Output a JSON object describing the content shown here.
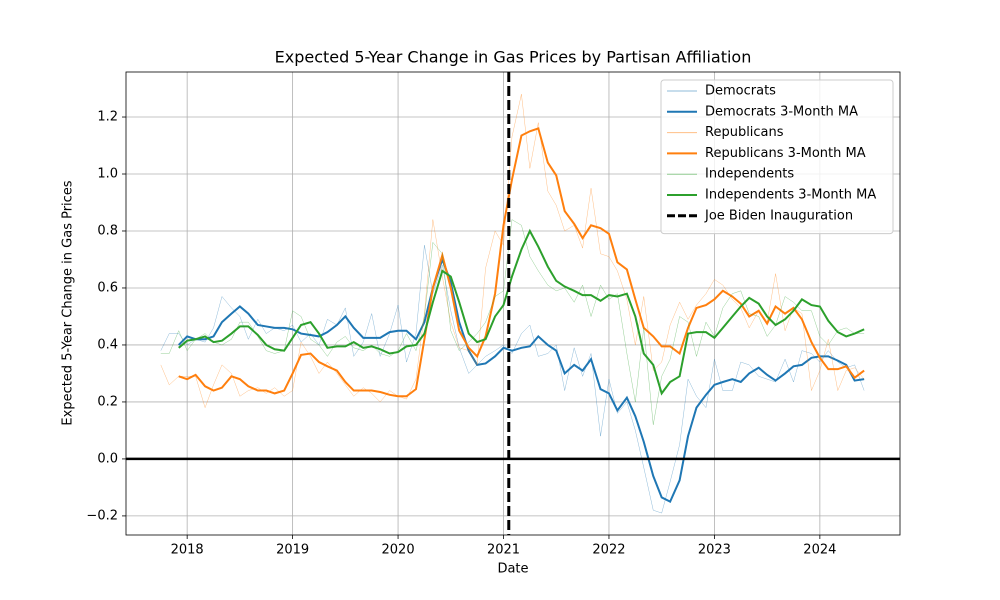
{
  "chart_data": {
    "type": "line",
    "title": "Expected 5-Year Change in Gas Prices by Partisan Affiliation",
    "xlabel": "Date",
    "ylabel": "Expected 5-Year Change in Gas Prices",
    "xlim": [
      2017.42,
      2024.76
    ],
    "ylim": [
      -0.267,
      1.358
    ],
    "xticks": [
      2018,
      2019,
      2020,
      2021,
      2022,
      2023,
      2024
    ],
    "yticks": [
      {
        "value": -0.2,
        "label": "−0.2"
      },
      {
        "value": 0,
        "label": "0.0"
      },
      0.2,
      0.4,
      0.6,
      0.8,
      {
        "value": 1,
        "label": "1.0"
      },
      1.2
    ],
    "grid": true,
    "legend": "upper right",
    "hline": 0,
    "vlines": [
      {
        "x": 2021.05,
        "label": "Joe Biden Inauguration",
        "color": "#000000",
        "linestyle": "dashed"
      }
    ],
    "x": [
      2017.75,
      2017.83,
      2017.92,
      2018.0,
      2018.08,
      2018.17,
      2018.25,
      2018.33,
      2018.42,
      2018.5,
      2018.58,
      2018.67,
      2018.75,
      2018.83,
      2018.92,
      2019.0,
      2019.08,
      2019.17,
      2019.25,
      2019.33,
      2019.42,
      2019.5,
      2019.58,
      2019.67,
      2019.75,
      2019.83,
      2019.92,
      2020.0,
      2020.08,
      2020.17,
      2020.25,
      2020.33,
      2020.42,
      2020.5,
      2020.58,
      2020.67,
      2020.75,
      2020.83,
      2020.92,
      2021.0,
      2021.08,
      2021.17,
      2021.25,
      2021.33,
      2021.42,
      2021.5,
      2021.58,
      2021.67,
      2021.75,
      2021.83,
      2021.92,
      2022.0,
      2022.08,
      2022.17,
      2022.25,
      2022.33,
      2022.42,
      2022.5,
      2022.58,
      2022.67,
      2022.75,
      2022.83,
      2022.92,
      2023.0,
      2023.08,
      2023.17,
      2023.25,
      2023.33,
      2023.42,
      2023.5,
      2023.58,
      2023.67,
      2023.75,
      2023.83,
      2023.92,
      2024.0,
      2024.08,
      2024.17,
      2024.25,
      2024.33,
      2024.42
    ],
    "series": [
      {
        "name": "Democrats",
        "color": "#1f77b4",
        "linewidth": 0.5,
        "alpha": 0.5,
        "values": [
          0.38,
          0.44,
          0.44,
          0.4,
          0.42,
          0.41,
          0.46,
          0.57,
          0.53,
          0.5,
          0.42,
          0.49,
          0.44,
          0.46,
          0.45,
          0.47,
          0.41,
          0.44,
          0.4,
          0.49,
          0.47,
          0.53,
          0.36,
          0.41,
          0.51,
          0.36,
          0.44,
          0.54,
          0.34,
          0.44,
          0.75,
          0.58,
          0.68,
          0.52,
          0.39,
          0.3,
          0.33,
          0.36,
          0.38,
          0.4,
          0.37,
          0.44,
          0.47,
          0.36,
          0.37,
          0.4,
          0.24,
          0.39,
          0.29,
          0.37,
          0.08,
          0.28,
          0.16,
          0.2,
          0.1,
          -0.03,
          -0.18,
          -0.19,
          -0.08,
          0.05,
          0.28,
          0.22,
          0.18,
          0.35,
          0.24,
          0.24,
          0.34,
          0.33,
          0.29,
          0.28,
          0.27,
          0.35,
          0.27,
          0.38,
          0.37,
          0.34,
          0.38,
          0.34,
          0.32,
          0.33,
          0.24
        ]
      },
      {
        "name": "Democrats 3-Month MA",
        "color": "#1f77b4",
        "linewidth": 2,
        "alpha": 1,
        "values": [
          null,
          null,
          0.4,
          0.43,
          0.42,
          0.42,
          0.43,
          0.48,
          0.51,
          0.535,
          0.51,
          0.47,
          0.465,
          0.46,
          0.46,
          0.455,
          0.44,
          0.435,
          0.43,
          0.445,
          0.47,
          0.5,
          0.46,
          0.425,
          0.425,
          0.425,
          0.445,
          0.45,
          0.45,
          0.42,
          0.48,
          0.6,
          0.7,
          0.62,
          0.48,
          0.38,
          0.33,
          0.335,
          0.36,
          0.39,
          0.38,
          0.39,
          0.395,
          0.43,
          0.4,
          0.38,
          0.3,
          0.33,
          0.31,
          0.35,
          0.245,
          0.23,
          0.17,
          0.215,
          0.15,
          0.06,
          -0.06,
          -0.135,
          -0.15,
          -0.075,
          0.08,
          0.18,
          0.225,
          0.26,
          0.27,
          0.28,
          0.27,
          0.3,
          0.32,
          0.295,
          0.275,
          0.3,
          0.325,
          0.33,
          0.355,
          0.36,
          0.36,
          0.345,
          0.33,
          0.275,
          0.28
        ]
      },
      {
        "name": "Republicans",
        "color": "#ff7f0e",
        "linewidth": 0.5,
        "alpha": 0.5,
        "values": [
          0.33,
          0.26,
          0.29,
          0.29,
          0.29,
          0.18,
          0.26,
          0.33,
          0.3,
          0.22,
          0.24,
          0.25,
          0.23,
          0.25,
          0.22,
          0.24,
          0.41,
          0.36,
          0.3,
          0.34,
          0.3,
          0.26,
          0.22,
          0.25,
          0.23,
          0.2,
          0.24,
          0.22,
          0.21,
          0.28,
          0.51,
          0.84,
          0.64,
          0.48,
          0.39,
          0.38,
          0.33,
          0.67,
          0.8,
          0.75,
          1.13,
          1.28,
          1.02,
          1.18,
          0.94,
          0.89,
          0.8,
          0.82,
          0.74,
          0.95,
          0.72,
          0.71,
          0.66,
          0.56,
          0.4,
          0.57,
          0.31,
          0.34,
          0.47,
          0.55,
          0.49,
          0.54,
          0.58,
          0.63,
          0.61,
          0.56,
          0.53,
          0.46,
          0.52,
          0.48,
          0.65,
          0.45,
          0.53,
          0.51,
          0.24,
          0.31,
          0.42,
          0.24,
          0.31,
          0.32,
          0.28
        ]
      },
      {
        "name": "Republicans 3-Month MA",
        "color": "#ff7f0e",
        "linewidth": 2,
        "alpha": 1,
        "values": [
          null,
          null,
          0.29,
          0.28,
          0.295,
          0.255,
          0.24,
          0.25,
          0.29,
          0.28,
          0.255,
          0.24,
          0.24,
          0.23,
          0.24,
          0.3,
          0.365,
          0.37,
          0.34,
          0.325,
          0.31,
          0.27,
          0.24,
          0.24,
          0.24,
          0.235,
          0.225,
          0.22,
          0.22,
          0.245,
          0.42,
          0.6,
          0.715,
          0.6,
          0.45,
          0.39,
          0.36,
          0.43,
          0.58,
          0.82,
          0.98,
          1.135,
          1.15,
          1.16,
          1.04,
          0.995,
          0.87,
          0.825,
          0.775,
          0.82,
          0.81,
          0.79,
          0.69,
          0.665,
          0.56,
          0.46,
          0.43,
          0.395,
          0.395,
          0.37,
          0.46,
          0.53,
          0.54,
          0.56,
          0.59,
          0.57,
          0.545,
          0.5,
          0.52,
          0.475,
          0.535,
          0.51,
          0.53,
          0.49,
          0.41,
          0.355,
          0.315,
          0.315,
          0.325,
          0.285,
          0.31
        ]
      },
      {
        "name": "Independents",
        "color": "#2ca02c",
        "linewidth": 0.5,
        "alpha": 0.5,
        "values": [
          0.37,
          0.37,
          0.45,
          0.38,
          0.42,
          0.44,
          0.41,
          0.4,
          0.42,
          0.48,
          0.48,
          0.43,
          0.38,
          0.37,
          0.38,
          0.52,
          0.5,
          0.42,
          0.4,
          0.36,
          0.41,
          0.43,
          0.39,
          0.38,
          0.4,
          0.37,
          0.36,
          0.38,
          0.44,
          0.38,
          0.5,
          0.76,
          0.72,
          0.45,
          0.38,
          0.41,
          0.44,
          0.48,
          0.57,
          0.59,
          0.84,
          0.82,
          0.71,
          0.66,
          0.61,
          0.59,
          0.6,
          0.55,
          0.61,
          0.5,
          0.61,
          0.56,
          0.58,
          0.37,
          0.2,
          0.46,
          0.12,
          0.29,
          0.35,
          0.5,
          0.48,
          0.36,
          0.48,
          0.43,
          0.53,
          0.58,
          0.59,
          0.51,
          0.5,
          0.43,
          0.47,
          0.57,
          0.55,
          0.52,
          0.52,
          0.43,
          0.4,
          0.45,
          0.46,
          0.44,
          0.44
        ]
      },
      {
        "name": "Independents 3-Month MA",
        "color": "#2ca02c",
        "linewidth": 2,
        "alpha": 1,
        "values": [
          null,
          null,
          0.39,
          0.415,
          0.42,
          0.43,
          0.41,
          0.415,
          0.44,
          0.465,
          0.465,
          0.435,
          0.4,
          0.385,
          0.38,
          0.425,
          0.47,
          0.48,
          0.44,
          0.39,
          0.395,
          0.395,
          0.41,
          0.39,
          0.395,
          0.385,
          0.37,
          0.375,
          0.395,
          0.4,
          0.44,
          0.55,
          0.66,
          0.64,
          0.55,
          0.44,
          0.41,
          0.42,
          0.5,
          0.54,
          0.64,
          0.735,
          0.8,
          0.745,
          0.675,
          0.625,
          0.605,
          0.59,
          0.575,
          0.575,
          0.555,
          0.575,
          0.57,
          0.58,
          0.5,
          0.37,
          0.33,
          0.23,
          0.27,
          0.29,
          0.44,
          0.445,
          0.445,
          0.425,
          0.46,
          0.5,
          0.535,
          0.565,
          0.545,
          0.5,
          0.47,
          0.49,
          0.52,
          0.56,
          0.54,
          0.535,
          0.485,
          0.445,
          0.43,
          0.44,
          0.455
        ]
      }
    ]
  }
}
